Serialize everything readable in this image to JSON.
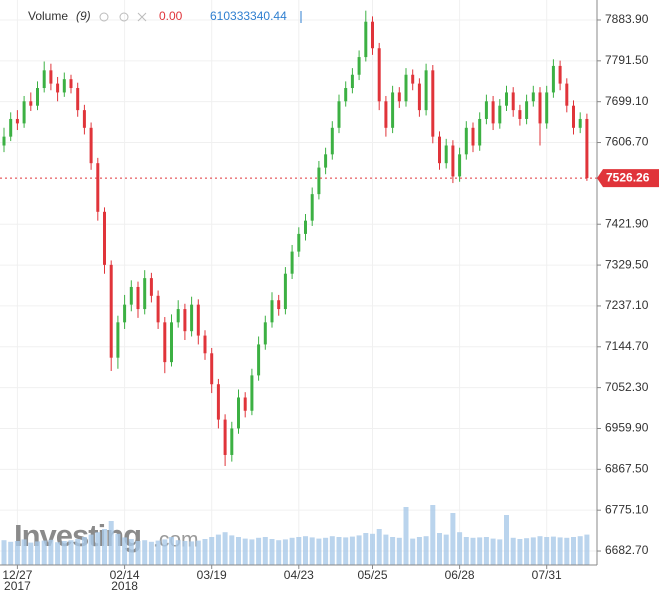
{
  "chart_data": {
    "type": "candlestick",
    "volume_label": "Volume",
    "volume_period": "(9)",
    "volume_change": "0.00",
    "volume_value": "610333340.44",
    "watermark": [
      "Investing",
      ".com"
    ],
    "up_color": "#3cb043",
    "down_color": "#e0343a",
    "volume_color": "#a9c9e8",
    "grid": true,
    "ylim": [
      6651.1,
      7929.1
    ],
    "yticks": [
      {
        "value": 6682.7,
        "label": "6682.70"
      },
      {
        "value": 6775.1,
        "label": "6775.10"
      },
      {
        "value": 6867.5,
        "label": "6867.50"
      },
      {
        "value": 6959.9,
        "label": "6959.90"
      },
      {
        "value": 7052.3,
        "label": "7052.30"
      },
      {
        "value": 7144.7,
        "label": "7144.70"
      },
      {
        "value": 7237.1,
        "label": "7237.10"
      },
      {
        "value": 7329.5,
        "label": "7329.50"
      },
      {
        "value": 7421.9,
        "label": "7421.90"
      },
      {
        "value": 7606.7,
        "label": "7606.70"
      },
      {
        "value": 7699.1,
        "label": "7699.10"
      },
      {
        "value": 7791.5,
        "label": "7791.50"
      },
      {
        "value": 7883.9,
        "label": "7883.90"
      }
    ],
    "last_price": 7526.26,
    "vlim": [
      0,
      2000
    ],
    "categories": [
      null,
      null,
      "12/27",
      null,
      null,
      null,
      null,
      null,
      null,
      null,
      null,
      null,
      null,
      null,
      null,
      null,
      null,
      null,
      "02/14",
      null,
      null,
      null,
      null,
      null,
      null,
      null,
      null,
      null,
      null,
      null,
      null,
      "03/19",
      null,
      null,
      null,
      null,
      null,
      null,
      null,
      null,
      null,
      null,
      null,
      null,
      "04/23",
      null,
      null,
      null,
      null,
      null,
      null,
      null,
      null,
      null,
      null,
      "05/25",
      null,
      null,
      null,
      null,
      null,
      null,
      null,
      null,
      null,
      null,
      null,
      null,
      "06/28",
      null,
      null,
      null,
      null,
      null,
      null,
      null,
      null,
      null,
      null,
      null,
      null,
      "07/31",
      null,
      null,
      null,
      null,
      null,
      null
    ],
    "category_years": [
      null,
      null,
      "2017",
      null,
      null,
      null,
      null,
      null,
      null,
      null,
      null,
      null,
      null,
      null,
      null,
      null,
      null,
      null,
      "2018",
      null,
      null,
      null,
      null,
      null,
      null,
      null,
      null,
      null,
      null,
      null,
      null,
      null,
      null,
      null,
      null,
      null,
      null,
      null,
      null,
      null,
      null,
      null,
      null,
      null,
      null,
      null,
      null,
      null,
      null,
      null,
      null,
      null,
      null,
      null,
      null,
      null,
      null,
      null,
      null,
      null,
      null,
      null,
      null,
      null,
      null,
      null,
      null,
      null,
      null,
      null,
      null,
      null,
      null,
      null,
      null,
      null,
      null,
      null,
      null,
      null,
      null,
      null,
      null,
      null,
      null,
      null,
      null,
      null
    ],
    "candles": [
      [
        7600,
        7640,
        7585,
        7620
      ],
      [
        7620,
        7675,
        7610,
        7660
      ],
      [
        7660,
        7680,
        7635,
        7650
      ],
      [
        7650,
        7712,
        7640,
        7700
      ],
      [
        7700,
        7720,
        7678,
        7690
      ],
      [
        7690,
        7745,
        7680,
        7730
      ],
      [
        7730,
        7790,
        7720,
        7770
      ],
      [
        7770,
        7785,
        7725,
        7740
      ],
      [
        7740,
        7755,
        7700,
        7720
      ],
      [
        7720,
        7765,
        7710,
        7750
      ],
      [
        7750,
        7760,
        7718,
        7730
      ],
      [
        7730,
        7742,
        7665,
        7680
      ],
      [
        7680,
        7692,
        7625,
        7640
      ],
      [
        7640,
        7652,
        7545,
        7560
      ],
      [
        7560,
        7572,
        7430,
        7450
      ],
      [
        7450,
        7460,
        7310,
        7330
      ],
      [
        7330,
        7340,
        7090,
        7120
      ],
      [
        7120,
        7215,
        7095,
        7200
      ],
      [
        7200,
        7262,
        7185,
        7240
      ],
      [
        7240,
        7295,
        7225,
        7280
      ],
      [
        7280,
        7292,
        7210,
        7230
      ],
      [
        7230,
        7318,
        7218,
        7300
      ],
      [
        7300,
        7312,
        7245,
        7260
      ],
      [
        7260,
        7272,
        7185,
        7200
      ],
      [
        7200,
        7212,
        7085,
        7110
      ],
      [
        7110,
        7218,
        7100,
        7200
      ],
      [
        7200,
        7250,
        7188,
        7230
      ],
      [
        7230,
        7242,
        7160,
        7180
      ],
      [
        7180,
        7258,
        7168,
        7240
      ],
      [
        7240,
        7252,
        7150,
        7170
      ],
      [
        7170,
        7182,
        7115,
        7130
      ],
      [
        7130,
        7142,
        7040,
        7060
      ],
      [
        7060,
        7072,
        6960,
        6980
      ],
      [
        6980,
        6992,
        6875,
        6900
      ],
      [
        6900,
        6975,
        6885,
        6960
      ],
      [
        6960,
        7048,
        6948,
        7030
      ],
      [
        7030,
        7042,
        6985,
        7000
      ],
      [
        7000,
        7095,
        6990,
        7080
      ],
      [
        7080,
        7168,
        7068,
        7150
      ],
      [
        7150,
        7215,
        7138,
        7200
      ],
      [
        7200,
        7268,
        7188,
        7250
      ],
      [
        7250,
        7262,
        7215,
        7230
      ],
      [
        7230,
        7325,
        7218,
        7310
      ],
      [
        7310,
        7375,
        7298,
        7360
      ],
      [
        7360,
        7415,
        7348,
        7400
      ],
      [
        7400,
        7445,
        7385,
        7430
      ],
      [
        7430,
        7505,
        7418,
        7490
      ],
      [
        7490,
        7565,
        7478,
        7550
      ],
      [
        7550,
        7595,
        7535,
        7580
      ],
      [
        7580,
        7655,
        7568,
        7640
      ],
      [
        7640,
        7715,
        7628,
        7700
      ],
      [
        7700,
        7745,
        7688,
        7730
      ],
      [
        7730,
        7775,
        7718,
        7760
      ],
      [
        7760,
        7815,
        7748,
        7800
      ],
      [
        7800,
        7905,
        7790,
        7880
      ],
      [
        7880,
        7892,
        7805,
        7820
      ],
      [
        7820,
        7832,
        7680,
        7700
      ],
      [
        7700,
        7712,
        7620,
        7640
      ],
      [
        7640,
        7735,
        7628,
        7720
      ],
      [
        7720,
        7732,
        7685,
        7700
      ],
      [
        7700,
        7775,
        7688,
        7760
      ],
      [
        7760,
        7772,
        7725,
        7740
      ],
      [
        7740,
        7752,
        7665,
        7680
      ],
      [
        7680,
        7785,
        7668,
        7770
      ],
      [
        7770,
        7782,
        7605,
        7620
      ],
      [
        7620,
        7632,
        7545,
        7560
      ],
      [
        7560,
        7615,
        7548,
        7600
      ],
      [
        7600,
        7612,
        7515,
        7530
      ],
      [
        7530,
        7595,
        7518,
        7580
      ],
      [
        7580,
        7655,
        7568,
        7640
      ],
      [
        7640,
        7652,
        7585,
        7600
      ],
      [
        7600,
        7675,
        7588,
        7660
      ],
      [
        7660,
        7715,
        7648,
        7700
      ],
      [
        7700,
        7712,
        7635,
        7650
      ],
      [
        7650,
        7705,
        7638,
        7690
      ],
      [
        7690,
        7735,
        7678,
        7720
      ],
      [
        7720,
        7732,
        7665,
        7680
      ],
      [
        7680,
        7692,
        7645,
        7660
      ],
      [
        7660,
        7715,
        7648,
        7700
      ],
      [
        7700,
        7735,
        7688,
        7720
      ],
      [
        7720,
        7732,
        7600,
        7650
      ],
      [
        7650,
        7735,
        7638,
        7720
      ],
      [
        7720,
        7795,
        7708,
        7780
      ],
      [
        7780,
        7792,
        7725,
        7740
      ],
      [
        7740,
        7752,
        7675,
        7690
      ],
      [
        7690,
        7702,
        7625,
        7640
      ],
      [
        7640,
        7675,
        7628,
        7660
      ],
      [
        7660,
        7672,
        7520,
        7526.26
      ]
    ],
    "volume": [
      620,
      580,
      600,
      640,
      560,
      590,
      610,
      630,
      570,
      600,
      620,
      650,
      700,
      760,
      820,
      900,
      1100,
      780,
      690,
      650,
      600,
      620,
      580,
      610,
      640,
      700,
      620,
      600,
      590,
      610,
      650,
      700,
      760,
      820,
      740,
      700,
      660,
      640,
      680,
      700,
      650,
      620,
      640,
      680,
      700,
      720,
      690,
      660,
      680,
      720,
      700,
      690,
      710,
      740,
      800,
      780,
      900,
      760,
      700,
      680,
      1450,
      660,
      700,
      720,
      1500,
      800,
      760,
      1300,
      820,
      700,
      680,
      690,
      700,
      660,
      640,
      1250,
      680,
      650,
      670,
      690,
      720,
      700,
      710,
      690,
      680,
      700,
      720,
      760
    ]
  }
}
